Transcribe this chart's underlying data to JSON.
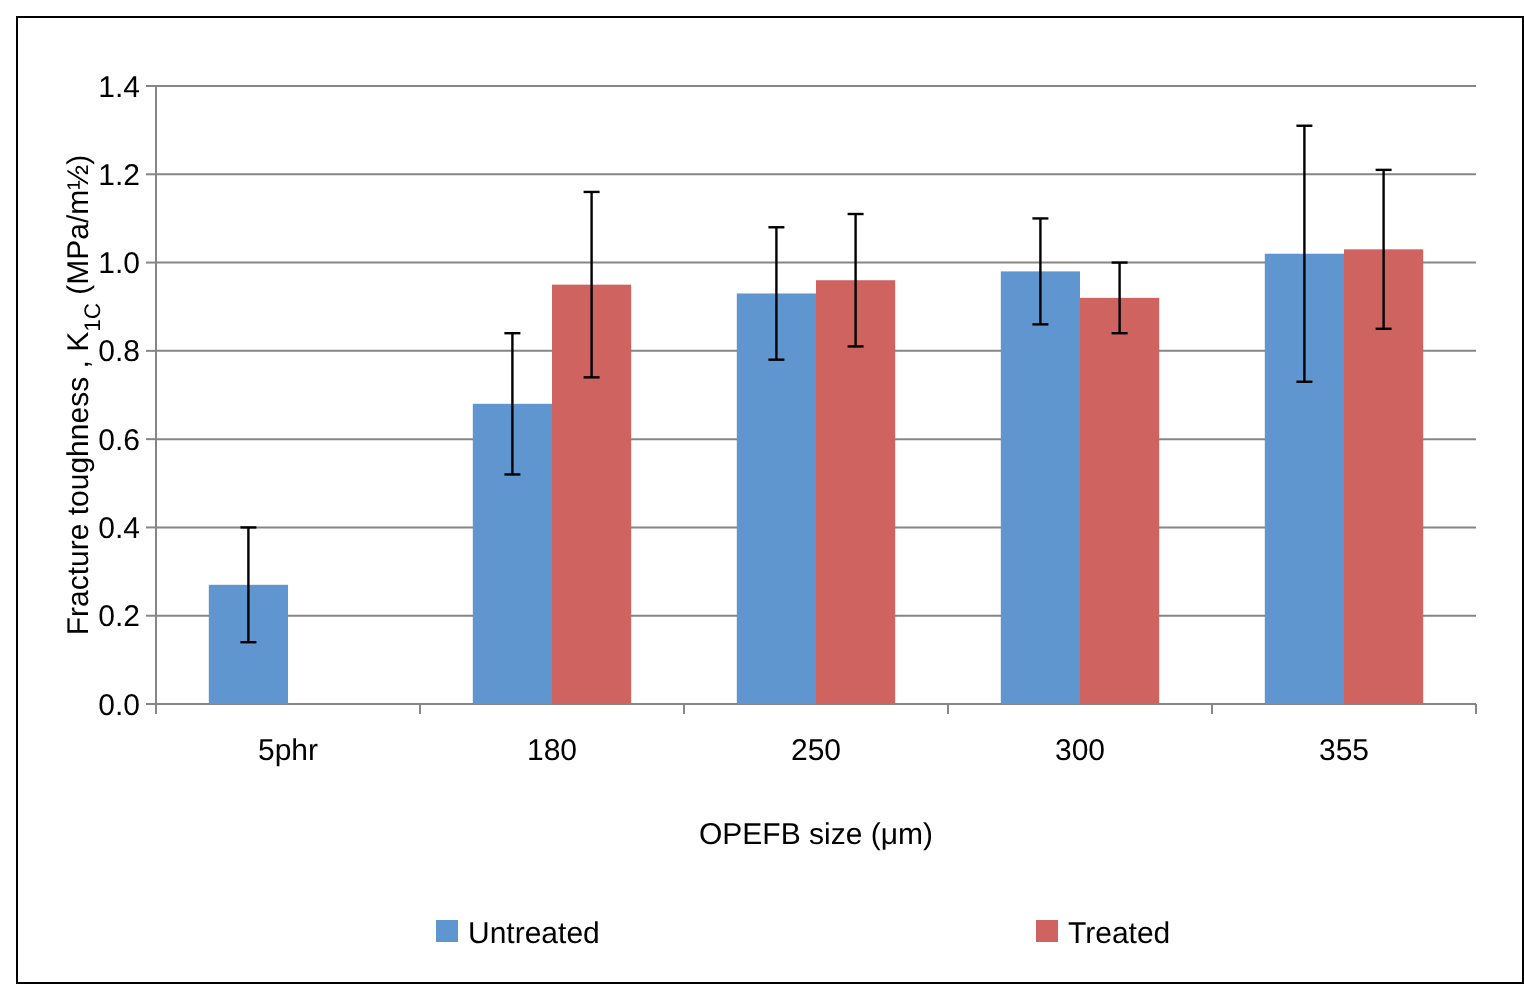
{
  "chart_data": {
    "type": "bar",
    "xlabel": "OPEFB size (μm)",
    "ylabel": "Fracture toughness , K$_{1C}$ (MPa/m½)",
    "categories": [
      "5phr",
      "180",
      "250",
      "300",
      "355"
    ],
    "series": [
      {
        "name": "Untreated",
        "color": "#5f96cf",
        "values": [
          0.27,
          0.68,
          0.93,
          0.98,
          1.02
        ],
        "errors": [
          [
            0.14,
            0.4
          ],
          [
            0.52,
            0.84
          ],
          [
            0.78,
            1.08
          ],
          [
            0.86,
            1.1
          ],
          [
            0.73,
            1.31
          ]
        ]
      },
      {
        "name": "Treated",
        "color": "#cf6360",
        "values": [
          null,
          0.95,
          0.96,
          0.92,
          1.03
        ],
        "errors": [
          null,
          [
            0.74,
            1.16
          ],
          [
            0.81,
            1.11
          ],
          [
            0.84,
            1.0
          ],
          [
            0.85,
            1.21
          ]
        ]
      }
    ],
    "ylim": [
      0,
      1.4
    ],
    "yticks": [
      {
        "value": 0,
        "label": "0.0"
      },
      {
        "value": 0.2,
        "label": "0.2"
      },
      {
        "value": 0.4,
        "label": "0.4"
      },
      {
        "value": 0.6,
        "label": "0.6"
      },
      {
        "value": 0.8,
        "label": "0.8"
      },
      {
        "value": 1,
        "label": "1.0"
      },
      {
        "value": 1.2,
        "label": "1.2"
      },
      {
        "value": 1.4,
        "label": "1.4"
      }
    ],
    "grid": "y",
    "legend": "bottom"
  }
}
